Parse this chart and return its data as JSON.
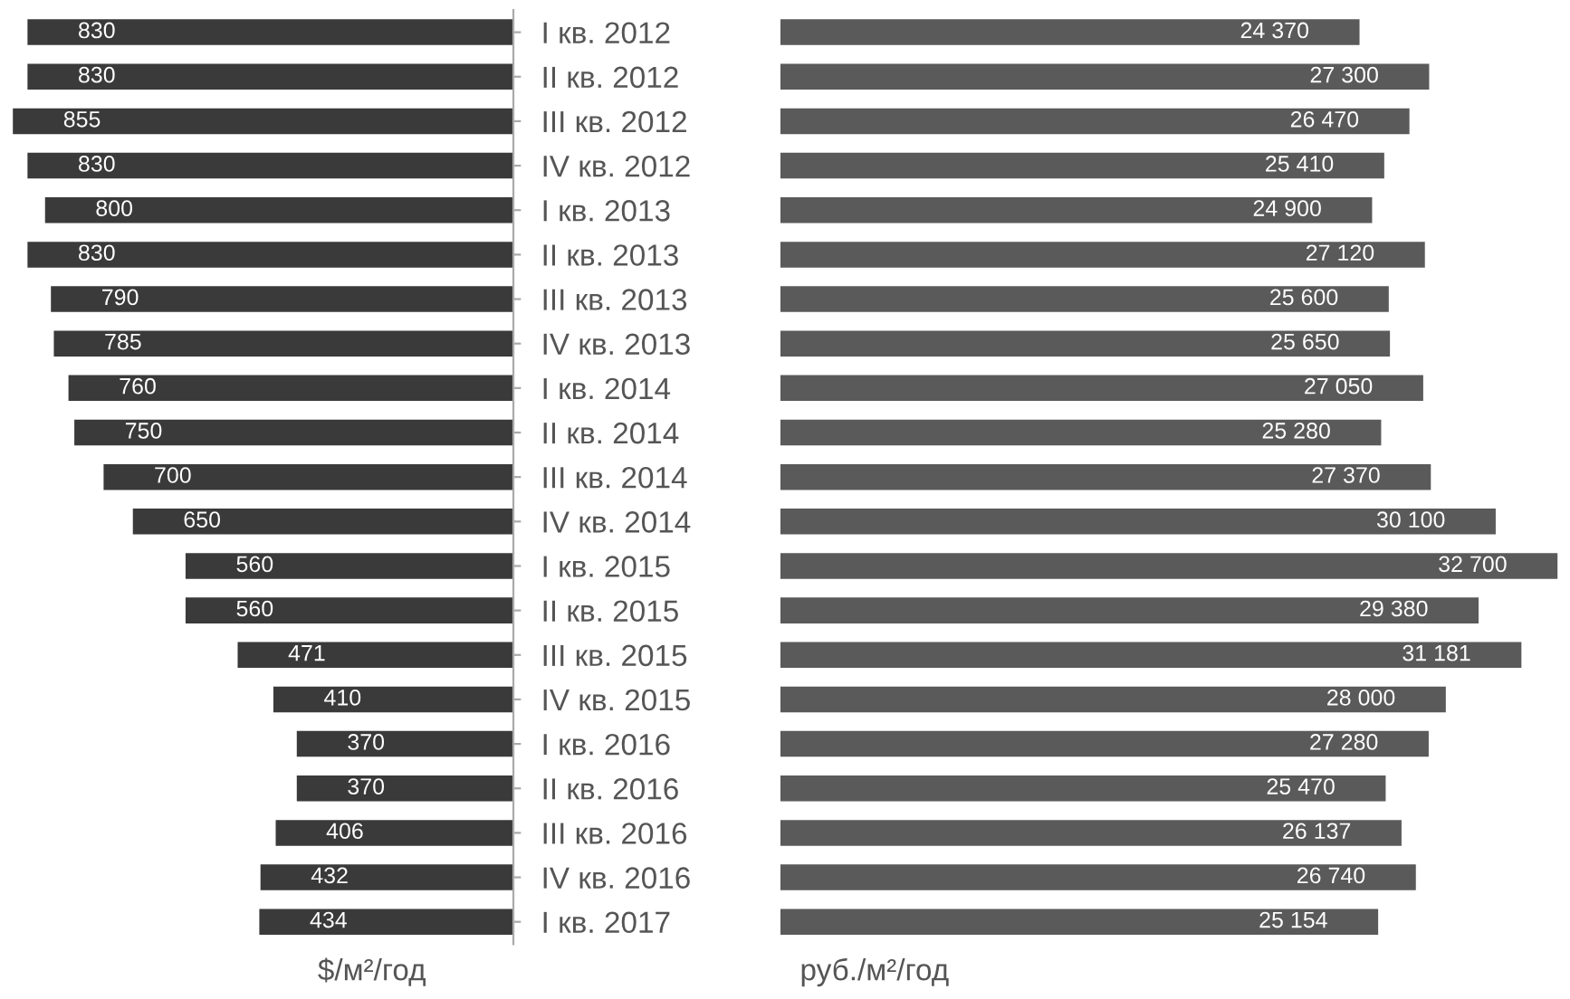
{
  "chart_data": [
    {
      "type": "bar",
      "orientation": "horizontal",
      "xlabel": "$/м²/год",
      "data_labels": true,
      "tick_labels": "y",
      "color": "#3a3a3a",
      "categories": [
        "I кв. 2012",
        "II кв. 2012",
        "III кв. 2012",
        "IV кв. 2012",
        "I кв. 2013",
        "II кв. 2013",
        "III кв. 2013",
        "IV кв. 2013",
        "I кв. 2014",
        "II кв. 2014",
        "III кв. 2014",
        "IV кв. 2014",
        "I кв. 2015",
        "II кв. 2015",
        "III кв. 2015",
        "IV кв. 2015",
        "I кв. 2016",
        "II кв. 2016",
        "III кв. 2016",
        "IV кв. 2016",
        "I кв. 2017"
      ],
      "values": [
        830,
        830,
        855,
        830,
        800,
        830,
        790,
        785,
        760,
        750,
        700,
        650,
        560,
        560,
        471,
        410,
        370,
        370,
        406,
        432,
        434
      ]
    },
    {
      "type": "bar",
      "orientation": "horizontal",
      "xlabel": "руб./м²/год",
      "tick_labels": false,
      "color": "#5a5a5a",
      "categories": [
        null,
        null,
        null,
        null,
        null,
        null,
        null,
        null,
        null,
        null,
        null,
        null,
        null,
        null,
        null,
        null,
        null,
        null,
        null,
        null,
        null
      ],
      "values": [
        24370,
        27300,
        26470,
        25410,
        24900,
        27120,
        25600,
        25650,
        27050,
        25280,
        27370,
        30100,
        32700,
        29380,
        31181,
        28000,
        27280,
        25470,
        26137,
        26740,
        25154
      ],
      "value_labels": [
        "24 370",
        "27 300",
        "26 470",
        "25 410",
        "24 900",
        "27 120",
        "25 600",
        "25 650",
        "27 050",
        "25 280",
        "27 370",
        "30 100",
        "32 700",
        "29 380",
        "31 181",
        "28 000",
        "27 280",
        "25 470",
        "26 137",
        "26 740",
        "25 154"
      ]
    }
  ]
}
